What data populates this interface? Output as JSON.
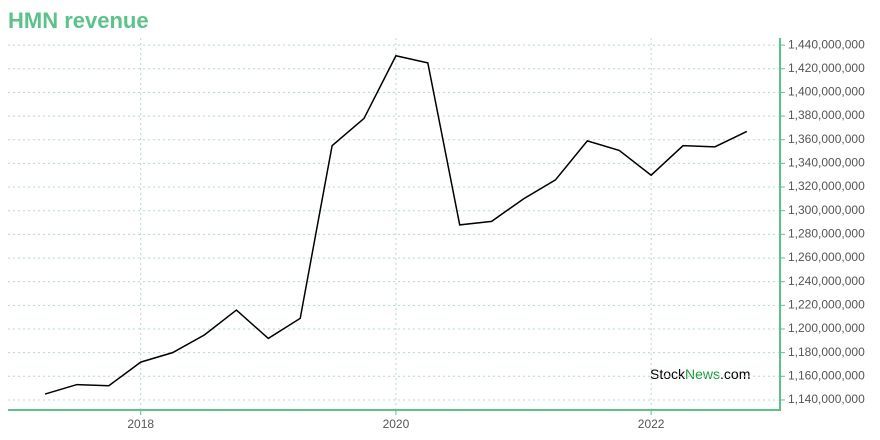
{
  "chart_data": {
    "type": "line",
    "title": "HMN revenue",
    "watermark": [
      "Stock",
      "News",
      ".com"
    ],
    "x": [
      2017.25,
      2017.5,
      2017.75,
      2018,
      2018.25,
      2018.5,
      2018.75,
      2019,
      2019.25,
      2019.5,
      2019.75,
      2020,
      2020.25,
      2020.5,
      2020.75,
      2021,
      2021.25,
      2021.5,
      2021.75,
      2022,
      2022.25,
      2022.5,
      2022.75
    ],
    "series": [
      {
        "color": "#000000",
        "values": [
          1145000000,
          1153000000,
          1152000000,
          1172000000,
          1180000000,
          1195000000,
          1216000000,
          1192000000,
          1209000000,
          1355000000,
          1378000000,
          1431000000,
          1425000000,
          1288000000,
          1291000000,
          1310000000,
          1326000000,
          1359000000,
          1351000000,
          1330000000,
          1355000000,
          1354000000,
          1367000000
        ]
      }
    ],
    "xlim": [
      2016.96,
      2023.01
    ],
    "xticks": [
      2018,
      2020,
      2022
    ],
    "ylim": [
      1131500000,
      1446000000
    ],
    "yticks": [
      {
        "value": 1140000000,
        "label": "1,140,000,000"
      },
      {
        "value": 1160000000,
        "label": "1,160,000,000"
      },
      {
        "value": 1180000000,
        "label": "1,180,000,000"
      },
      {
        "value": 1200000000,
        "label": "1,200,000,000"
      },
      {
        "value": 1220000000,
        "label": "1,220,000,000"
      },
      {
        "value": 1240000000,
        "label": "1,240,000,000"
      },
      {
        "value": 1260000000,
        "label": "1,260,000,000"
      },
      {
        "value": 1280000000,
        "label": "1,280,000,000"
      },
      {
        "value": 1300000000,
        "label": "1,300,000,000"
      },
      {
        "value": 1320000000,
        "label": "1,320,000,000"
      },
      {
        "value": 1340000000,
        "label": "1,340,000,000"
      },
      {
        "value": 1360000000,
        "label": "1,360,000,000"
      },
      {
        "value": 1380000000,
        "label": "1,380,000,000"
      },
      {
        "value": 1400000000,
        "label": "1,400,000,000"
      },
      {
        "value": 1420000000,
        "label": "1,420,000,000"
      },
      {
        "value": 1440000000,
        "label": "1,440,000,000"
      }
    ],
    "grid": true,
    "axis_color": "#5cc28a"
  }
}
